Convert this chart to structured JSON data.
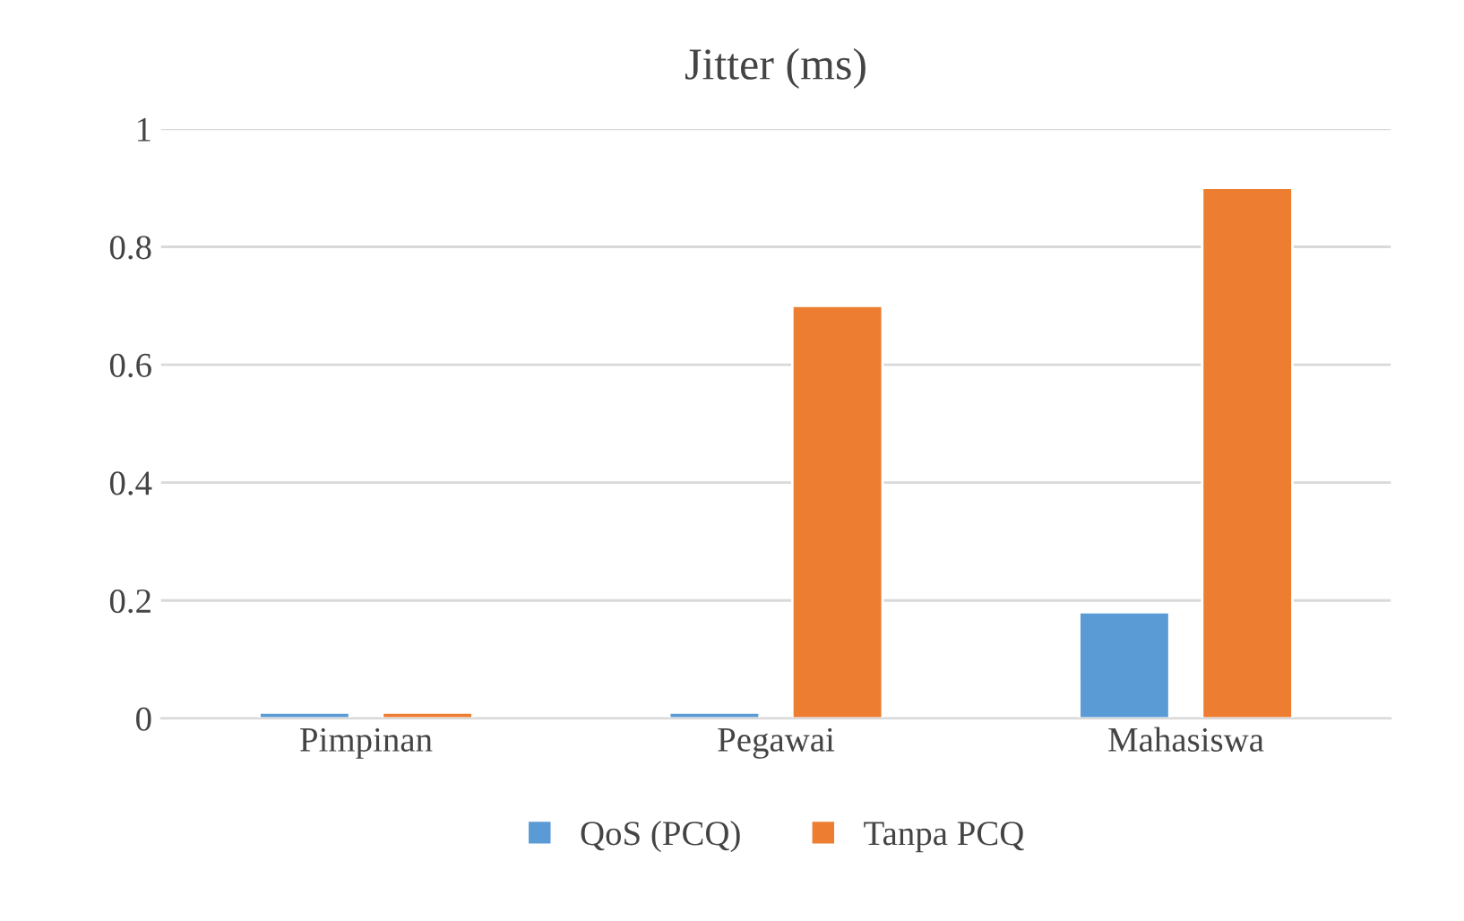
{
  "chart_data": {
    "type": "bar",
    "title": "Jitter (ms)",
    "categories": [
      "Pimpinan",
      "Pegawai",
      "Mahasiswa"
    ],
    "series": [
      {
        "name": "QoS (PCQ)",
        "color": "#5b9bd5",
        "values": [
          0.01,
          0.01,
          0.18
        ]
      },
      {
        "name": "Tanpa PCQ",
        "color": "#ed7d31",
        "values": [
          0.01,
          0.7,
          0.9
        ]
      }
    ],
    "ylim": [
      0,
      1
    ],
    "yticks": [
      0,
      0.2,
      0.4,
      0.6,
      0.8,
      1
    ],
    "grid": "y",
    "legend": "bottom"
  }
}
